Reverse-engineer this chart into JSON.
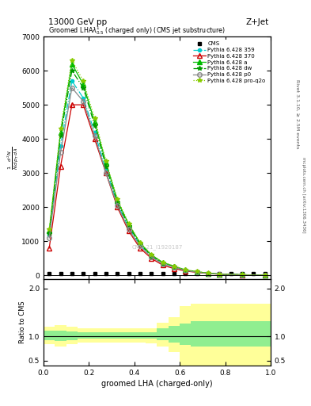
{
  "title_top": "13000 GeV pp",
  "title_top_right": "Z+Jet",
  "plot_title": "Groomed LHA$\\lambda^1_{0.5}$ (charged only) (CMS jet substructure)",
  "xlabel": "groomed LHA (charged-only)",
  "right_label_top": "Rivet 3.1.10, ≥ 2.5M events",
  "right_label_bottom": "mcplots.cern.ch [arXiv:1306.3436]",
  "watermark": "CMS_21_I1920187",
  "ratio_ylabel": "Ratio to CMS",
  "xlim": [
    0.0,
    1.0
  ],
  "cms_data": {
    "x": [
      0.025,
      0.075,
      0.125,
      0.175,
      0.225,
      0.275,
      0.325,
      0.375,
      0.425,
      0.475,
      0.525,
      0.575,
      0.625,
      0.675,
      0.725,
      0.775,
      0.825,
      0.875,
      0.925,
      0.975
    ],
    "y": [
      50,
      50,
      50,
      50,
      50,
      50,
      50,
      50,
      50,
      50,
      50,
      50,
      50,
      50,
      50,
      50,
      50,
      50,
      50,
      50
    ],
    "color": "#000000",
    "marker": "s",
    "label": "CMS"
  },
  "pythia_359": {
    "x": [
      0.025,
      0.075,
      0.125,
      0.175,
      0.225,
      0.275,
      0.325,
      0.375,
      0.425,
      0.475,
      0.525,
      0.575,
      0.625,
      0.675,
      0.725,
      0.775,
      0.875,
      0.975
    ],
    "y": [
      1200,
      3800,
      5700,
      5200,
      4200,
      3100,
      2100,
      1400,
      900,
      550,
      350,
      250,
      150,
      100,
      60,
      40,
      20,
      5
    ],
    "color": "#00CCCC",
    "linestyle": "-.",
    "marker": "o",
    "markersize": 3,
    "label": "Pythia 6.428 359"
  },
  "pythia_370": {
    "x": [
      0.025,
      0.075,
      0.125,
      0.175,
      0.225,
      0.275,
      0.325,
      0.375,
      0.425,
      0.475,
      0.525,
      0.575,
      0.625,
      0.675,
      0.725,
      0.775,
      0.875,
      0.975
    ],
    "y": [
      800,
      3200,
      5000,
      5000,
      4000,
      3000,
      2000,
      1300,
      800,
      500,
      300,
      200,
      130,
      90,
      55,
      35,
      18,
      4
    ],
    "color": "#CC0000",
    "linestyle": "-",
    "marker": "^",
    "markersize": 4,
    "markerfacecolor": "none",
    "label": "Pythia 6.428 370"
  },
  "pythia_a": {
    "x": [
      0.025,
      0.075,
      0.125,
      0.175,
      0.225,
      0.275,
      0.325,
      0.375,
      0.425,
      0.475,
      0.525,
      0.575,
      0.625,
      0.675,
      0.725,
      0.775,
      0.875,
      0.975
    ],
    "y": [
      1300,
      4200,
      6200,
      5600,
      4500,
      3300,
      2200,
      1500,
      950,
      600,
      380,
      270,
      160,
      110,
      65,
      42,
      22,
      6
    ],
    "color": "#00BB00",
    "linestyle": "-",
    "marker": "^",
    "markersize": 4,
    "label": "Pythia 6.428 a"
  },
  "pythia_dw": {
    "x": [
      0.025,
      0.075,
      0.125,
      0.175,
      0.225,
      0.275,
      0.325,
      0.375,
      0.425,
      0.475,
      0.525,
      0.575,
      0.625,
      0.675,
      0.725,
      0.775,
      0.875,
      0.975
    ],
    "y": [
      1250,
      4100,
      6000,
      5500,
      4400,
      3200,
      2150,
      1450,
      920,
      580,
      360,
      260,
      155,
      105,
      63,
      40,
      21,
      5
    ],
    "color": "#009900",
    "linestyle": "-.",
    "marker": "*",
    "markersize": 4,
    "label": "Pythia 6.428 dw"
  },
  "pythia_p0": {
    "x": [
      0.025,
      0.075,
      0.125,
      0.175,
      0.225,
      0.275,
      0.325,
      0.375,
      0.425,
      0.475,
      0.525,
      0.575,
      0.625,
      0.675,
      0.725,
      0.775,
      0.875,
      0.975
    ],
    "y": [
      1100,
      3600,
      5500,
      5100,
      4100,
      3000,
      2050,
      1350,
      860,
      540,
      340,
      240,
      145,
      95,
      57,
      37,
      19,
      4
    ],
    "color": "#888888",
    "linestyle": "-",
    "marker": "o",
    "markersize": 4,
    "markerfacecolor": "none",
    "label": "Pythia 6.428 p0"
  },
  "pythia_proq2o": {
    "x": [
      0.025,
      0.075,
      0.125,
      0.175,
      0.225,
      0.275,
      0.325,
      0.375,
      0.425,
      0.475,
      0.525,
      0.575,
      0.625,
      0.675,
      0.725,
      0.775,
      0.875,
      0.975
    ],
    "y": [
      1350,
      4300,
      6300,
      5700,
      4600,
      3350,
      2250,
      1520,
      970,
      610,
      390,
      275,
      165,
      115,
      68,
      43,
      23,
      6
    ],
    "color": "#88CC00",
    "linestyle": ":",
    "marker": "*",
    "markersize": 4,
    "label": "Pythia 6.428 pro-q2o"
  },
  "yticks": [
    0,
    1000,
    2000,
    3000,
    4000,
    5000,
    6000,
    7000
  ],
  "ylim_main": [
    -100,
    7000
  ],
  "ratio_green_x": [
    0.0,
    0.05,
    0.1,
    0.15,
    0.2,
    0.25,
    0.3,
    0.35,
    0.4,
    0.45,
    0.5,
    0.55,
    0.6,
    0.65,
    1.0
  ],
  "ratio_green_lo": [
    0.93,
    0.9,
    0.93,
    0.96,
    0.95,
    0.96,
    0.96,
    0.96,
    0.96,
    0.96,
    0.93,
    0.88,
    0.83,
    0.8,
    0.8
  ],
  "ratio_green_hi": [
    1.12,
    1.13,
    1.11,
    1.09,
    1.09,
    1.09,
    1.09,
    1.09,
    1.09,
    1.09,
    1.17,
    1.22,
    1.27,
    1.32,
    1.32
  ],
  "ratio_yellow_x": [
    0.0,
    0.05,
    0.1,
    0.15,
    0.2,
    0.25,
    0.3,
    0.35,
    0.4,
    0.45,
    0.5,
    0.55,
    0.6,
    0.65,
    1.0
  ],
  "ratio_yellow_lo": [
    0.85,
    0.8,
    0.85,
    0.88,
    0.88,
    0.88,
    0.88,
    0.88,
    0.88,
    0.86,
    0.8,
    0.68,
    0.4,
    0.4,
    0.4
  ],
  "ratio_yellow_hi": [
    1.2,
    1.24,
    1.2,
    1.17,
    1.17,
    1.17,
    1.17,
    1.17,
    1.17,
    1.17,
    1.28,
    1.4,
    1.63,
    1.68,
    1.68
  ],
  "ratio_ylim": [
    0.4,
    2.2
  ],
  "ratio_yticks": [
    0.5,
    1.0,
    2.0
  ]
}
